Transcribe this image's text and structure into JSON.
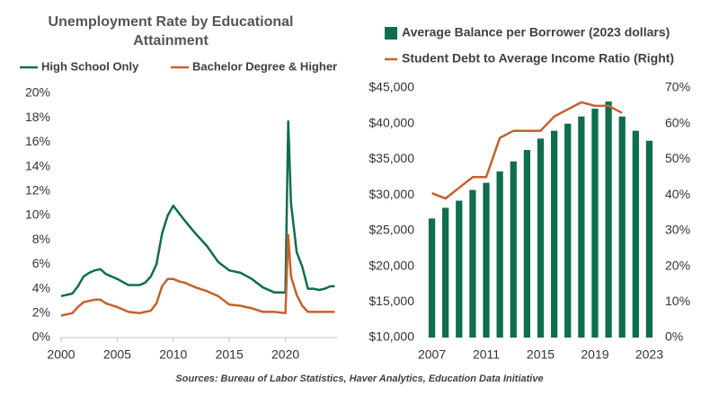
{
  "chart_data": [
    {
      "type": "line",
      "title": "Unemployment Rate by Educational Attainment",
      "x": [
        2000,
        2001,
        2001.5,
        2002,
        2002.5,
        2003,
        2003.5,
        2004,
        2005,
        2006,
        2007,
        2007.5,
        2008,
        2008.5,
        2009,
        2009.5,
        2010,
        2010.5,
        2011,
        2012,
        2013,
        2014,
        2015,
        2016,
        2017,
        2018,
        2019,
        2020,
        2020.25,
        2020.5,
        2021,
        2021.5,
        2022,
        2022.5,
        2023,
        2023.5,
        2024,
        2024.4
      ],
      "series": [
        {
          "name": "High School Only",
          "color": "#0e6e4e",
          "values": [
            3.4,
            3.6,
            4.2,
            5.0,
            5.3,
            5.5,
            5.6,
            5.2,
            4.8,
            4.3,
            4.3,
            4.5,
            5.0,
            6.0,
            8.5,
            10.0,
            10.8,
            10.2,
            9.6,
            8.5,
            7.5,
            6.2,
            5.5,
            5.3,
            4.8,
            4.1,
            3.7,
            3.7,
            17.7,
            11.0,
            7.0,
            5.8,
            4.0,
            4.0,
            3.9,
            4.0,
            4.2,
            4.2
          ]
        },
        {
          "name": "Bachelor Degree & Higher",
          "color": "#c5612c",
          "values": [
            1.8,
            2.0,
            2.5,
            2.9,
            3.0,
            3.1,
            3.1,
            2.8,
            2.5,
            2.1,
            2.0,
            2.1,
            2.2,
            2.8,
            4.2,
            4.8,
            4.8,
            4.6,
            4.5,
            4.1,
            3.8,
            3.4,
            2.7,
            2.6,
            2.4,
            2.1,
            2.1,
            2.0,
            8.4,
            5.0,
            3.5,
            2.6,
            2.1,
            2.1,
            2.1,
            2.1,
            2.1,
            2.1
          ]
        }
      ],
      "xlim": [
        2000,
        2024.6
      ],
      "xticks": [
        2000,
        2005,
        2010,
        2015,
        2020
      ],
      "ylim": [
        0,
        20
      ],
      "yticks": [
        {
          "value": 0,
          "label": "0%"
        },
        {
          "value": 2,
          "label": "2%"
        },
        {
          "value": 4,
          "label": "4%"
        },
        {
          "value": 6,
          "label": "6%"
        },
        {
          "value": 8,
          "label": "8%"
        },
        {
          "value": 10,
          "label": "10%"
        },
        {
          "value": 12,
          "label": "12%"
        },
        {
          "value": 14,
          "label": "14%"
        },
        {
          "value": 16,
          "label": "16%"
        },
        {
          "value": 18,
          "label": "18%"
        },
        {
          "value": 20,
          "label": "20%"
        }
      ],
      "grid": false
    },
    {
      "type": "bar",
      "categories": [
        "2007",
        null,
        null,
        null,
        "2011",
        null,
        null,
        null,
        "2015",
        null,
        null,
        null,
        "2019",
        null,
        null,
        null,
        "2023"
      ],
      "series": [
        {
          "name": "Average Balance per Borrower (2023 dollars)",
          "color": "#0e6e4e",
          "values": [
            26700,
            28200,
            29200,
            30700,
            31700,
            33300,
            34700,
            36300,
            37900,
            39000,
            40000,
            41000,
            42100,
            43100,
            41000,
            39000,
            37600
          ]
        },
        {
          "name": "Student Debt to Average Income Ratio (Right)",
          "color": "#c5612c",
          "type": "line",
          "axis": "y2",
          "values": [
            40.5,
            39,
            42,
            45,
            45,
            56,
            58,
            58,
            58,
            62,
            64,
            66,
            65,
            65,
            63,
            null,
            null
          ]
        }
      ],
      "ylim": [
        10000,
        45000
      ],
      "yticks": [
        {
          "value": 10000,
          "label": "$10,000"
        },
        {
          "value": 15000,
          "label": "$15,000"
        },
        {
          "value": 20000,
          "label": "$20,000"
        },
        {
          "value": 25000,
          "label": "$25,000"
        },
        {
          "value": 30000,
          "label": "$30,000"
        },
        {
          "value": 35000,
          "label": "$35,000"
        },
        {
          "value": 40000,
          "label": "$40,000"
        },
        {
          "value": 45000,
          "label": "$45,000"
        }
      ],
      "y2lim": [
        0,
        70
      ],
      "y2ticks": [
        {
          "value": 0,
          "label": "0%"
        },
        {
          "value": 10,
          "label": "10%"
        },
        {
          "value": 20,
          "label": "20%"
        },
        {
          "value": 30,
          "label": "30%"
        },
        {
          "value": 40,
          "label": "40%"
        },
        {
          "value": 50,
          "label": "50%"
        },
        {
          "value": 60,
          "label": "60%"
        },
        {
          "value": 70,
          "label": "70%"
        }
      ],
      "grid": false
    }
  ],
  "source": "Sources: Bureau of Labor Statistics, Haver Analytics, Education Data Initiative"
}
